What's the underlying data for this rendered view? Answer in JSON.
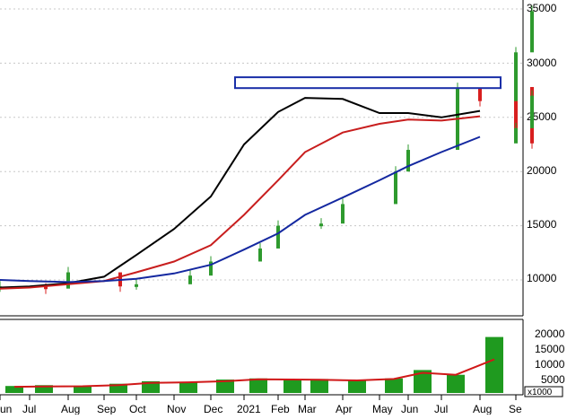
{
  "chart_data": [
    {
      "type": "candlestick",
      "title": "",
      "x_tick_labels": [
        "Jun",
        "Jul",
        "Aug",
        "Sep",
        "Oct",
        "Nov",
        "Dec",
        "2021",
        "Feb",
        "Mar",
        "Apr",
        "May",
        "Jun",
        "Jul",
        "Aug",
        "Se"
      ],
      "y_tick_labels": [
        "10000",
        "15000",
        "20000",
        "25000",
        "30000",
        "35000"
      ],
      "ylim": [
        5500,
        36500
      ],
      "grid": true,
      "colors": {
        "up": "#2e9a2e",
        "down": "#d81f1f",
        "ma_short": "#000000",
        "ma_mid": "#c81e1e",
        "ma_long": "#1428a0",
        "zone": "#1a2fa8"
      },
      "series": [
        {
          "type": "line",
          "color": "#000000",
          "points": [
            [
              "Jun",
              9300
            ],
            [
              "Jul",
              9400
            ],
            [
              "Aug",
              9700
            ],
            [
              "Sep",
              10300
            ],
            [
              "Oct",
              12300
            ],
            [
              "Nov",
              14700
            ],
            [
              "Dec",
              17700
            ],
            [
              "2021",
              22500
            ],
            [
              "Feb",
              25500
            ],
            [
              "Mar",
              26800
            ],
            [
              "Apr",
              26700
            ],
            [
              "May",
              25400
            ],
            [
              "Jun",
              25400
            ],
            [
              "Jul",
              25000
            ],
            [
              "Aug",
              25600
            ]
          ]
        },
        {
          "type": "line",
          "color": "#c81e1e",
          "points": [
            [
              "Jun",
              9200
            ],
            [
              "Jul",
              9300
            ],
            [
              "Aug",
              9600
            ],
            [
              "Sep",
              9900
            ],
            [
              "Oct",
              10700
            ],
            [
              "Nov",
              11700
            ],
            [
              "Dec",
              13200
            ],
            [
              "2021",
              16000
            ],
            [
              "Feb",
              19200
            ],
            [
              "Mar",
              21800
            ],
            [
              "Apr",
              23600
            ],
            [
              "May",
              24400
            ],
            [
              "Jun",
              24800
            ],
            [
              "Jul",
              24700
            ],
            [
              "Aug",
              25100
            ]
          ]
        },
        {
          "type": "line",
          "color": "#1428a0",
          "points": [
            [
              "Jun",
              10000
            ],
            [
              "Jul",
              9900
            ],
            [
              "Aug",
              9800
            ],
            [
              "Sep",
              9900
            ],
            [
              "Oct",
              10100
            ],
            [
              "Nov",
              10600
            ],
            [
              "Dec",
              11400
            ],
            [
              "2021",
              12800
            ],
            [
              "Feb",
              14300
            ],
            [
              "Mar",
              16000
            ],
            [
              "Apr",
              17600
            ],
            [
              "May",
              19200
            ],
            [
              "Jun",
              20500
            ],
            [
              "Jul",
              21800
            ],
            [
              "Aug",
              23200
            ]
          ]
        }
      ],
      "candles": [
        [
          "Jun",
          9400
        ],
        [
          "Jul",
          9200
        ],
        [
          "Jul",
          10700
        ],
        [
          "Aug",
          9400
        ],
        [
          "Aug",
          9600
        ],
        [
          "Sep",
          10400
        ],
        [
          "Sep",
          11700
        ],
        [
          "Oct",
          12900
        ],
        [
          "Oct",
          15000
        ],
        [
          "Nov",
          15200
        ],
        [
          "Nov",
          17000
        ],
        [
          "Dec",
          20000
        ],
        [
          "Dec",
          22000
        ],
        [
          "2021",
          27700
        ],
        [
          "2021",
          26500
        ],
        [
          "Feb",
          24000
        ],
        [
          "Feb",
          25700
        ],
        [
          "Mar",
          26000
        ],
        [
          "Mar",
          24800
        ],
        [
          "Apr",
          25000
        ],
        [
          "Apr",
          24000
        ],
        [
          "May",
          25500
        ],
        [
          "May",
          27800
        ],
        [
          "Jun",
          26500
        ],
        [
          "Jun",
          25300
        ],
        [
          "Jul",
          22600
        ],
        [
          "Jul",
          24000
        ],
        [
          "Aug",
          27000
        ],
        [
          "Aug",
          31000
        ],
        [
          "Aug",
          34800
        ]
      ],
      "resistance_zone": {
        "from": "2021",
        "to": "Aug",
        "low": 27700,
        "high": 28700
      }
    },
    {
      "type": "bar",
      "title": "",
      "unit_label": "x1000",
      "y_tick_labels": [
        "5000",
        "10000",
        "15000",
        "20000"
      ],
      "ylim": [
        0,
        25000
      ],
      "colors": {
        "bars": "#1f9a1f",
        "ma": "#d01818"
      },
      "bars": [
        [
          "Jun",
          2500
        ],
        [
          "Jul",
          2800
        ],
        [
          "Aug",
          2600
        ],
        [
          "Sep",
          3300
        ],
        [
          "Oct",
          4200
        ],
        [
          "Nov",
          4000
        ],
        [
          "Dec",
          4800
        ],
        [
          "2021",
          5200
        ],
        [
          "Feb",
          4800
        ],
        [
          "Mar",
          5000
        ],
        [
          "Apr",
          4400
        ],
        [
          "May",
          5200
        ],
        [
          "Jun",
          8200
        ],
        [
          "Jul",
          6500
        ],
        [
          "Aug",
          14000
        ],
        [
          "Aug",
          20000
        ]
      ],
      "ma": [
        [
          "Jun",
          2200
        ],
        [
          "Jul",
          2300
        ],
        [
          "Aug",
          2400
        ],
        [
          "Sep",
          2800
        ],
        [
          "Oct",
          3600
        ],
        [
          "Nov",
          3800
        ],
        [
          "Dec",
          4200
        ],
        [
          "2021",
          4900
        ],
        [
          "Feb",
          4800
        ],
        [
          "Mar",
          4700
        ],
        [
          "Apr",
          4500
        ],
        [
          "May",
          5000
        ],
        [
          "Jun",
          7200
        ],
        [
          "Jul",
          6500
        ],
        [
          "Aug",
          12000
        ]
      ]
    }
  ]
}
